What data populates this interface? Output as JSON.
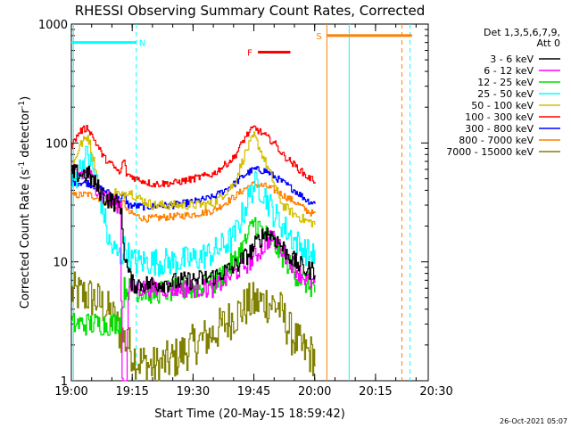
{
  "chart_data": {
    "type": "line",
    "title": "RHESSI Observing Summary Count Rates, Corrected",
    "xlabel": "Start Time (20-May-15 18:59:42)",
    "ylabel_main": "Corrected Count Rate (s",
    "ylabel_sup1": "-1",
    "ylabel_mid": " detector",
    "ylabel_sup2": "-1",
    "ylabel_end": ")",
    "y_scale": "log",
    "ylim": [
      1,
      1000
    ],
    "xlim_minutes": [
      0,
      88
    ],
    "x_ticks": [
      {
        "m": 0,
        "label": "19:00"
      },
      {
        "m": 15,
        "label": "19:15"
      },
      {
        "m": 30,
        "label": "19:30"
      },
      {
        "m": 45,
        "label": "19:45"
      },
      {
        "m": 60,
        "label": "20:00"
      },
      {
        "m": 75,
        "label": "20:15"
      },
      {
        "m": 90,
        "label": "20:30"
      }
    ],
    "y_ticks": [
      {
        "v": 1,
        "label": "1"
      },
      {
        "v": 10,
        "label": "10"
      },
      {
        "v": 100,
        "label": "100"
      },
      {
        "v": 1000,
        "label": "1000"
      }
    ],
    "legend_header": [
      "Det 1,3,5,6,7,9,",
      "Att 0"
    ],
    "legend": [
      {
        "label": "3 - 6 keV",
        "color": "#000000"
      },
      {
        "label": "6 - 12 keV",
        "color": "#ff00ff"
      },
      {
        "label": "12 - 25 keV",
        "color": "#00e000"
      },
      {
        "label": "25 - 50 keV",
        "color": "#00ffff"
      },
      {
        "label": "50 - 100 keV",
        "color": "#d4c000"
      },
      {
        "label": "100 - 300 keV",
        "color": "#ff0000"
      },
      {
        "label": "300 - 800 keV",
        "color": "#0000ff"
      },
      {
        "label": "800 - 7000 keV",
        "color": "#ff8000"
      },
      {
        "label": "7000 - 15000 keV",
        "color": "#808000"
      }
    ],
    "flags": [
      {
        "letter": "N",
        "color": "#00ffff",
        "start": 0,
        "end": 16,
        "value": 700
      },
      {
        "letter": "F",
        "color": "#ff0000",
        "start": 46,
        "end": 54,
        "value": 580
      },
      {
        "letter": "S",
        "color": "#ff8000",
        "start": 63,
        "end": 84,
        "value": 800
      }
    ],
    "vlines": [
      {
        "m": 0.5,
        "color": "#00ffff",
        "style": "solid"
      },
      {
        "m": 16,
        "color": "#00ffff",
        "style": "dashed"
      },
      {
        "m": 63,
        "color": "#ff8000",
        "style": "solid"
      },
      {
        "m": 68.5,
        "color": "#00ffff",
        "style": "solid"
      },
      {
        "m": 81.5,
        "color": "#ff8000",
        "style": "dashed"
      },
      {
        "m": 83.5,
        "color": "#00ffff",
        "style": "dashed"
      }
    ],
    "series": [
      {
        "name": "3 - 6 keV",
        "color": "#000000",
        "noise": 0.08,
        "points": [
          [
            0,
            55
          ],
          [
            4,
            55
          ],
          [
            8,
            35
          ],
          [
            12,
            30
          ],
          [
            13,
            12
          ],
          [
            14,
            8
          ],
          [
            15,
            6.5
          ],
          [
            20,
            6.5
          ],
          [
            30,
            7
          ],
          [
            35,
            7.5
          ],
          [
            40,
            9
          ],
          [
            44,
            12
          ],
          [
            46,
            15
          ],
          [
            48,
            18
          ],
          [
            50,
            16
          ],
          [
            55,
            10
          ],
          [
            58,
            8.5
          ],
          [
            60,
            8.5
          ]
        ]
      },
      {
        "name": "6 - 12 keV",
        "color": "#ff00ff",
        "noise": 0.08,
        "points": [
          [
            0,
            55
          ],
          [
            4,
            55
          ],
          [
            8,
            35
          ],
          [
            12,
            30
          ],
          [
            12.5,
            1
          ],
          [
            13.5,
            1
          ],
          [
            14,
            6
          ],
          [
            20,
            6
          ],
          [
            30,
            6
          ],
          [
            35,
            6
          ],
          [
            40,
            8
          ],
          [
            44,
            10
          ],
          [
            47,
            13
          ],
          [
            49,
            16
          ],
          [
            51,
            14
          ],
          [
            55,
            9
          ],
          [
            58,
            7
          ],
          [
            60,
            6.5
          ]
        ]
      },
      {
        "name": "12 - 25 keV",
        "color": "#00e000",
        "noise": 0.1,
        "points": [
          [
            0,
            3
          ],
          [
            10,
            3
          ],
          [
            12,
            3.2
          ],
          [
            13,
            6
          ],
          [
            20,
            5.5
          ],
          [
            30,
            6
          ],
          [
            35,
            6.5
          ],
          [
            40,
            10
          ],
          [
            43,
            15
          ],
          [
            45,
            22
          ],
          [
            47,
            18
          ],
          [
            50,
            14
          ],
          [
            55,
            8
          ],
          [
            58,
            6.5
          ],
          [
            60,
            6
          ]
        ]
      },
      {
        "name": "25 - 50 keV",
        "color": "#00ffff",
        "noise": 0.12,
        "points": [
          [
            0,
            45
          ],
          [
            2,
            60
          ],
          [
            4,
            80
          ],
          [
            6,
            50
          ],
          [
            8,
            25
          ],
          [
            9,
            15
          ],
          [
            10,
            13
          ],
          [
            12,
            11
          ],
          [
            13,
            13
          ],
          [
            15,
            10
          ],
          [
            18,
            10
          ],
          [
            20,
            10
          ],
          [
            25,
            10
          ],
          [
            30,
            10.5
          ],
          [
            35,
            12
          ],
          [
            40,
            16
          ],
          [
            43,
            30
          ],
          [
            45,
            45
          ],
          [
            47,
            40
          ],
          [
            50,
            25
          ],
          [
            55,
            15
          ],
          [
            58,
            12
          ],
          [
            60,
            11
          ]
        ]
      },
      {
        "name": "50 - 100 keV",
        "color": "#d4c000",
        "noise": 0.04,
        "points": [
          [
            0,
            60
          ],
          [
            2,
            95
          ],
          [
            4,
            115
          ],
          [
            6,
            60
          ],
          [
            7,
            35
          ],
          [
            8,
            32
          ],
          [
            10,
            35
          ],
          [
            11,
            40
          ],
          [
            12,
            35
          ],
          [
            14,
            40
          ],
          [
            16,
            35
          ],
          [
            20,
            30
          ],
          [
            30,
            30
          ],
          [
            35,
            31
          ],
          [
            40,
            45
          ],
          [
            43,
            85
          ],
          [
            45,
            115
          ],
          [
            47,
            80
          ],
          [
            50,
            45
          ],
          [
            52,
            30
          ],
          [
            55,
            25
          ],
          [
            58,
            22
          ],
          [
            60,
            21
          ]
        ]
      },
      {
        "name": "100 - 300 keV",
        "color": "#ff0000",
        "noise": 0.03,
        "points": [
          [
            0,
            95
          ],
          [
            2,
            125
          ],
          [
            4,
            135
          ],
          [
            6,
            100
          ],
          [
            8,
            75
          ],
          [
            10,
            65
          ],
          [
            12,
            55
          ],
          [
            12.8,
            75
          ],
          [
            13.5,
            55
          ],
          [
            16,
            50
          ],
          [
            20,
            45
          ],
          [
            25,
            46
          ],
          [
            30,
            50
          ],
          [
            35,
            55
          ],
          [
            40,
            75
          ],
          [
            43,
            115
          ],
          [
            45,
            135
          ],
          [
            47,
            120
          ],
          [
            50,
            100
          ],
          [
            52,
            80
          ],
          [
            55,
            65
          ],
          [
            58,
            52
          ],
          [
            60,
            48
          ]
        ]
      },
      {
        "name": "300 - 800 keV",
        "color": "#0000ff",
        "noise": 0.03,
        "points": [
          [
            0,
            47
          ],
          [
            4,
            46
          ],
          [
            8,
            40
          ],
          [
            12,
            33
          ],
          [
            12.8,
            36
          ],
          [
            14,
            30
          ],
          [
            18,
            29
          ],
          [
            25,
            30
          ],
          [
            30,
            32
          ],
          [
            35,
            35
          ],
          [
            40,
            45
          ],
          [
            43,
            55
          ],
          [
            45,
            60
          ],
          [
            48,
            58
          ],
          [
            50,
            52
          ],
          [
            55,
            40
          ],
          [
            58,
            33
          ],
          [
            60,
            31
          ]
        ]
      },
      {
        "name": "800 - 7000 keV",
        "color": "#ff8000",
        "noise": 0.03,
        "points": [
          [
            0,
            36
          ],
          [
            4,
            37
          ],
          [
            8,
            33
          ],
          [
            12,
            28
          ],
          [
            12.8,
            32
          ],
          [
            14,
            26
          ],
          [
            18,
            23
          ],
          [
            25,
            24
          ],
          [
            30,
            25
          ],
          [
            35,
            27
          ],
          [
            40,
            35
          ],
          [
            43,
            42
          ],
          [
            45,
            45
          ],
          [
            48,
            43
          ],
          [
            50,
            40
          ],
          [
            55,
            32
          ],
          [
            58,
            27
          ],
          [
            60,
            25
          ]
        ]
      },
      {
        "name": "7000 - 15000 keV",
        "color": "#808000",
        "noise": 0.18,
        "points": [
          [
            0,
            5.5
          ],
          [
            4,
            5.2
          ],
          [
            7,
            4.5
          ],
          [
            10,
            3.5
          ],
          [
            12,
            2.5
          ],
          [
            14,
            2
          ],
          [
            16,
            1.5
          ],
          [
            20,
            1.3
          ],
          [
            25,
            1.5
          ],
          [
            30,
            2
          ],
          [
            35,
            2.5
          ],
          [
            40,
            3.5
          ],
          [
            44,
            4.5
          ],
          [
            48,
            4.6
          ],
          [
            51,
            4.2
          ],
          [
            54,
            2.5
          ],
          [
            57,
            1.8
          ],
          [
            60,
            1.6
          ]
        ]
      }
    ],
    "timestamp": "26-Oct-2021 05:07"
  }
}
